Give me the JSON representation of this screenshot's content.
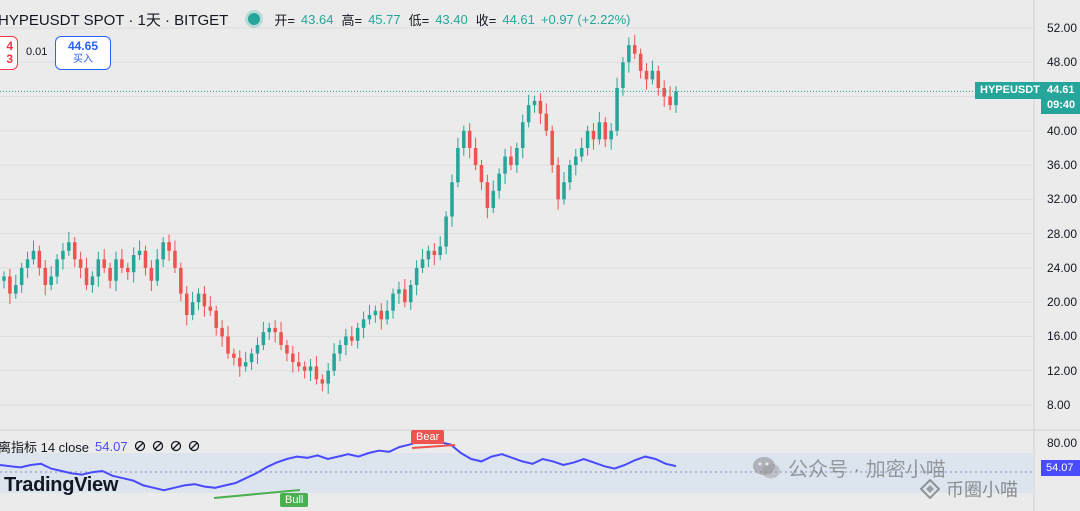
{
  "header": {
    "symbol_line": "HYPEUSDT SPOT · 1天 · BITGET",
    "ohlc": {
      "open_k": "开=",
      "open_v": "43.64",
      "high_k": "高=",
      "high_v": "45.77",
      "low_k": "低=",
      "low_v": "43.40",
      "close_k": "收=",
      "close_v": "44.61",
      "change": "+0.97 (+2.22%)"
    }
  },
  "trade": {
    "sell_price_fragment": "4",
    "sell_label_fragment": "3",
    "spread": "0.01",
    "buy_price": "44.65",
    "buy_label": "买入"
  },
  "price_axis": {
    "ticks": [
      "52.00",
      "48.00",
      "44.00",
      "40.00",
      "36.00",
      "32.00",
      "28.00",
      "24.00",
      "20.00",
      "16.00",
      "12.00",
      "8.00"
    ],
    "symbol_tag": "HYPEUSDT",
    "last_price": "44.61",
    "countdown": "09:40"
  },
  "oscillator": {
    "name": "离指标 14 close",
    "value": "54.07",
    "ticks": [
      "80.00"
    ],
    "current_tag": "54.07",
    "bear_label": "Bear",
    "bull_label": "Bull"
  },
  "branding": {
    "logo": "TradingView",
    "watermark1": "公众号 · 加密小喵",
    "watermark2": "币圈小喵"
  },
  "colors": {
    "up": "#26a69a",
    "down": "#ef5350",
    "oscillator_line": "#4a4aff",
    "osc_band": "#d8e2ef"
  },
  "chart_data": {
    "type": "candlestick",
    "price_range": [
      6.5,
      54
    ],
    "last_price": 44.61,
    "closes": [
      23,
      21,
      22,
      24,
      25,
      26,
      24,
      22,
      23,
      25,
      26,
      27,
      25,
      24,
      22,
      23,
      25,
      24,
      22.5,
      25,
      24,
      23.5,
      25.5,
      26,
      24,
      22.5,
      25,
      27,
      26,
      24,
      21,
      18.5,
      20,
      21,
      19.5,
      19,
      17,
      16,
      14,
      13.5,
      12.5,
      13,
      14,
      15,
      16.5,
      17,
      16.5,
      15,
      14,
      13,
      12.5,
      12,
      12.5,
      11,
      10.5,
      12,
      14,
      15,
      16,
      15.5,
      17,
      18,
      18.5,
      19,
      18,
      19,
      21,
      21.5,
      20,
      22,
      24,
      25,
      26,
      25.5,
      26.5,
      30,
      34,
      38,
      40,
      38,
      36,
      34,
      31,
      33,
      35,
      37,
      36,
      38,
      41,
      43,
      43.5,
      42,
      40,
      36,
      32,
      34,
      36,
      37,
      38,
      40,
      39,
      41,
      39,
      40,
      45,
      48,
      50,
      49,
      47,
      46,
      47,
      45,
      44,
      43,
      44.61
    ],
    "oscillator_range": [
      0,
      100
    ],
    "oscillator": [
      55,
      54,
      53,
      55,
      56,
      52,
      50,
      48,
      47,
      49,
      50,
      46,
      44,
      42,
      38,
      36,
      34,
      36,
      38,
      39,
      37,
      36,
      38,
      40,
      44,
      48,
      53,
      57,
      60,
      62,
      61,
      63,
      60,
      62,
      64,
      62,
      65,
      67,
      66,
      70,
      72,
      75,
      76,
      74,
      72,
      65,
      60,
      58,
      62,
      64,
      61,
      58,
      56,
      60,
      58,
      55,
      57,
      60,
      57,
      54,
      52,
      55,
      59,
      62,
      60,
      56,
      54.07
    ],
    "signals": [
      {
        "type": "Bear",
        "label": "Bear"
      },
      {
        "type": "Bull",
        "label": "Bull"
      }
    ]
  }
}
